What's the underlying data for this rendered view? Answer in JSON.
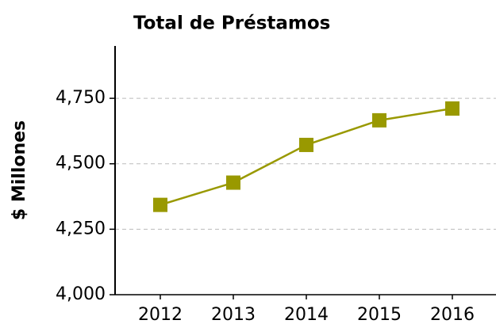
{
  "chart_data": {
    "type": "line",
    "title": "Total de Préstamos",
    "ylabel": "$ Millones",
    "categories": [
      "2012",
      "2013",
      "2014",
      "2015",
      "2016"
    ],
    "series": [
      {
        "name": "Total de Préstamos",
        "color": "#999900",
        "values": [
          4343,
          4428,
          4572,
          4666,
          4711
        ]
      }
    ],
    "ylim": [
      4000,
      4950
    ],
    "yticks": [
      {
        "value": 4000,
        "label": "4,000"
      },
      {
        "value": 4250,
        "label": "4,250"
      },
      {
        "value": 4500,
        "label": "4,500"
      },
      {
        "value": 4750,
        "label": "4,750"
      }
    ],
    "grid": true
  }
}
